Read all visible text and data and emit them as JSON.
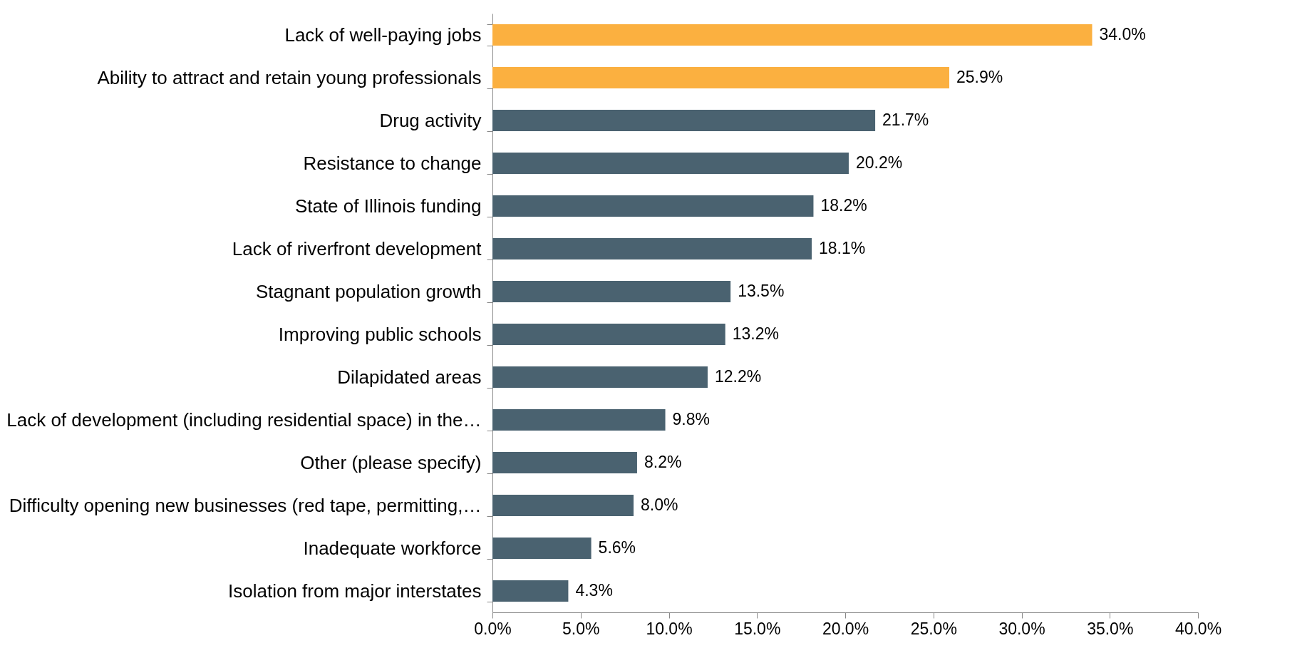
{
  "chart_data": {
    "type": "bar",
    "orientation": "horizontal",
    "categories": [
      "Lack of well-paying jobs",
      "Ability to attract and retain young professionals",
      "Drug activity",
      "Resistance to change",
      "State of Illinois funding",
      "Lack of riverfront development",
      "Stagnant population growth",
      "Improving public schools",
      "Dilapidated areas",
      "Lack of development (including residential space) in the…",
      "Other (please specify)",
      "Difficulty opening new businesses (red tape, permitting,…",
      "Inadequate workforce",
      "Isolation from major interstates"
    ],
    "values": [
      34.0,
      25.9,
      21.7,
      20.2,
      18.2,
      18.1,
      13.5,
      13.2,
      12.2,
      9.8,
      8.2,
      8.0,
      5.6,
      4.3
    ],
    "colors": [
      "#fbb040",
      "#fbb040",
      "#4a6270",
      "#4a6270",
      "#4a6270",
      "#4a6270",
      "#4a6270",
      "#4a6270",
      "#4a6270",
      "#4a6270",
      "#4a6270",
      "#4a6270",
      "#4a6270",
      "#4a6270"
    ],
    "value_labels": [
      "34.0%",
      "25.9%",
      "21.7%",
      "20.2%",
      "18.2%",
      "18.1%",
      "13.5%",
      "13.2%",
      "12.2%",
      "9.8%",
      "8.2%",
      "8.0%",
      "5.6%",
      "4.3%"
    ],
    "xlim": [
      0,
      40
    ],
    "xticks": [
      {
        "value": 0,
        "label": "0.0%"
      },
      {
        "value": 5,
        "label": "5.0%"
      },
      {
        "value": 10,
        "label": "10.0%"
      },
      {
        "value": 15,
        "label": "15.0%"
      },
      {
        "value": 20,
        "label": "20.0%"
      },
      {
        "value": 25,
        "label": "25.0%"
      },
      {
        "value": 30,
        "label": "30.0%"
      },
      {
        "value": 35,
        "label": "35.0%"
      },
      {
        "value": 40,
        "label": "40.0%"
      }
    ],
    "grid": false
  }
}
